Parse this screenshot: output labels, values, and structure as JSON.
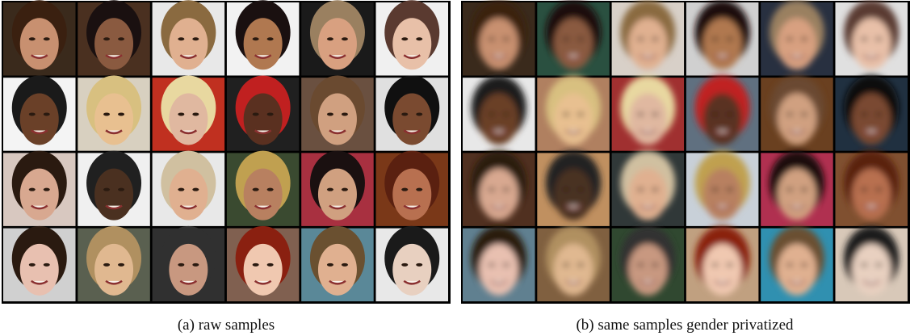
{
  "figure": {
    "panels": [
      {
        "caption": "(a) raw samples"
      },
      {
        "caption": "(b) same samples gender privatized"
      }
    ]
  }
}
